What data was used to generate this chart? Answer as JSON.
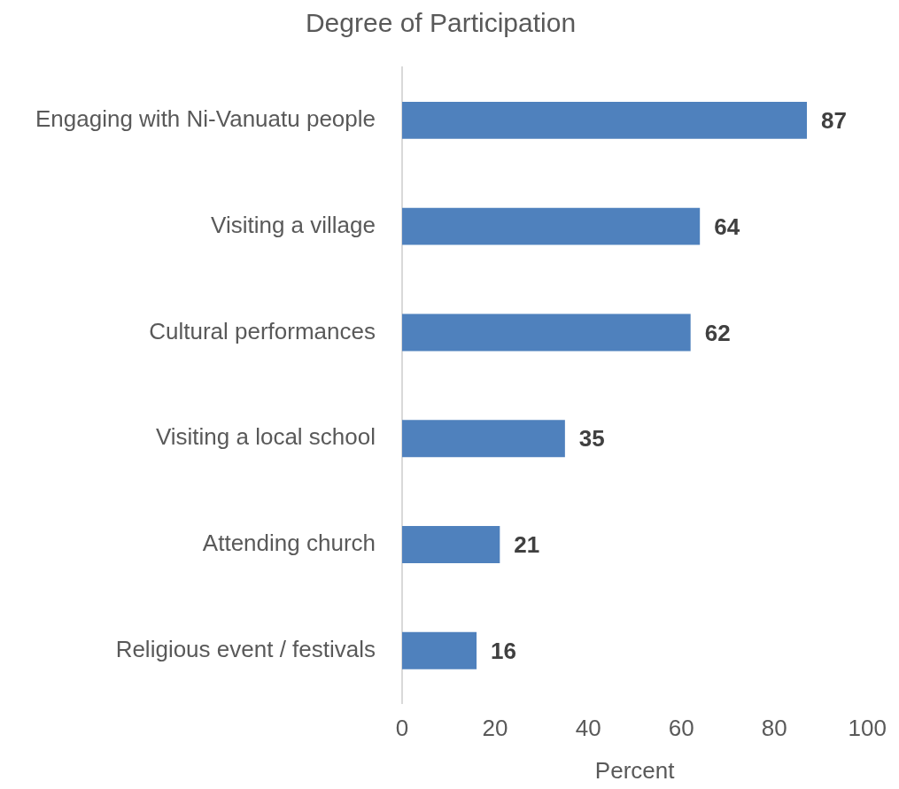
{
  "chart_data": {
    "type": "bar",
    "orientation": "horizontal",
    "title": "Degree of Participation",
    "xlabel": "Percent",
    "categories": [
      "Engaging with Ni-Vanuatu people",
      "Visiting a village",
      "Cultural performances",
      "Visiting a local school",
      "Attending church",
      "Religious event / festivals"
    ],
    "values": [
      87,
      64,
      62,
      35,
      21,
      16
    ],
    "color": "#4f81bd",
    "xlim": [
      0,
      100
    ],
    "xticks": [
      0,
      20,
      40,
      60,
      80,
      100
    ],
    "grid": false,
    "legend": false,
    "data_labels": true
  }
}
